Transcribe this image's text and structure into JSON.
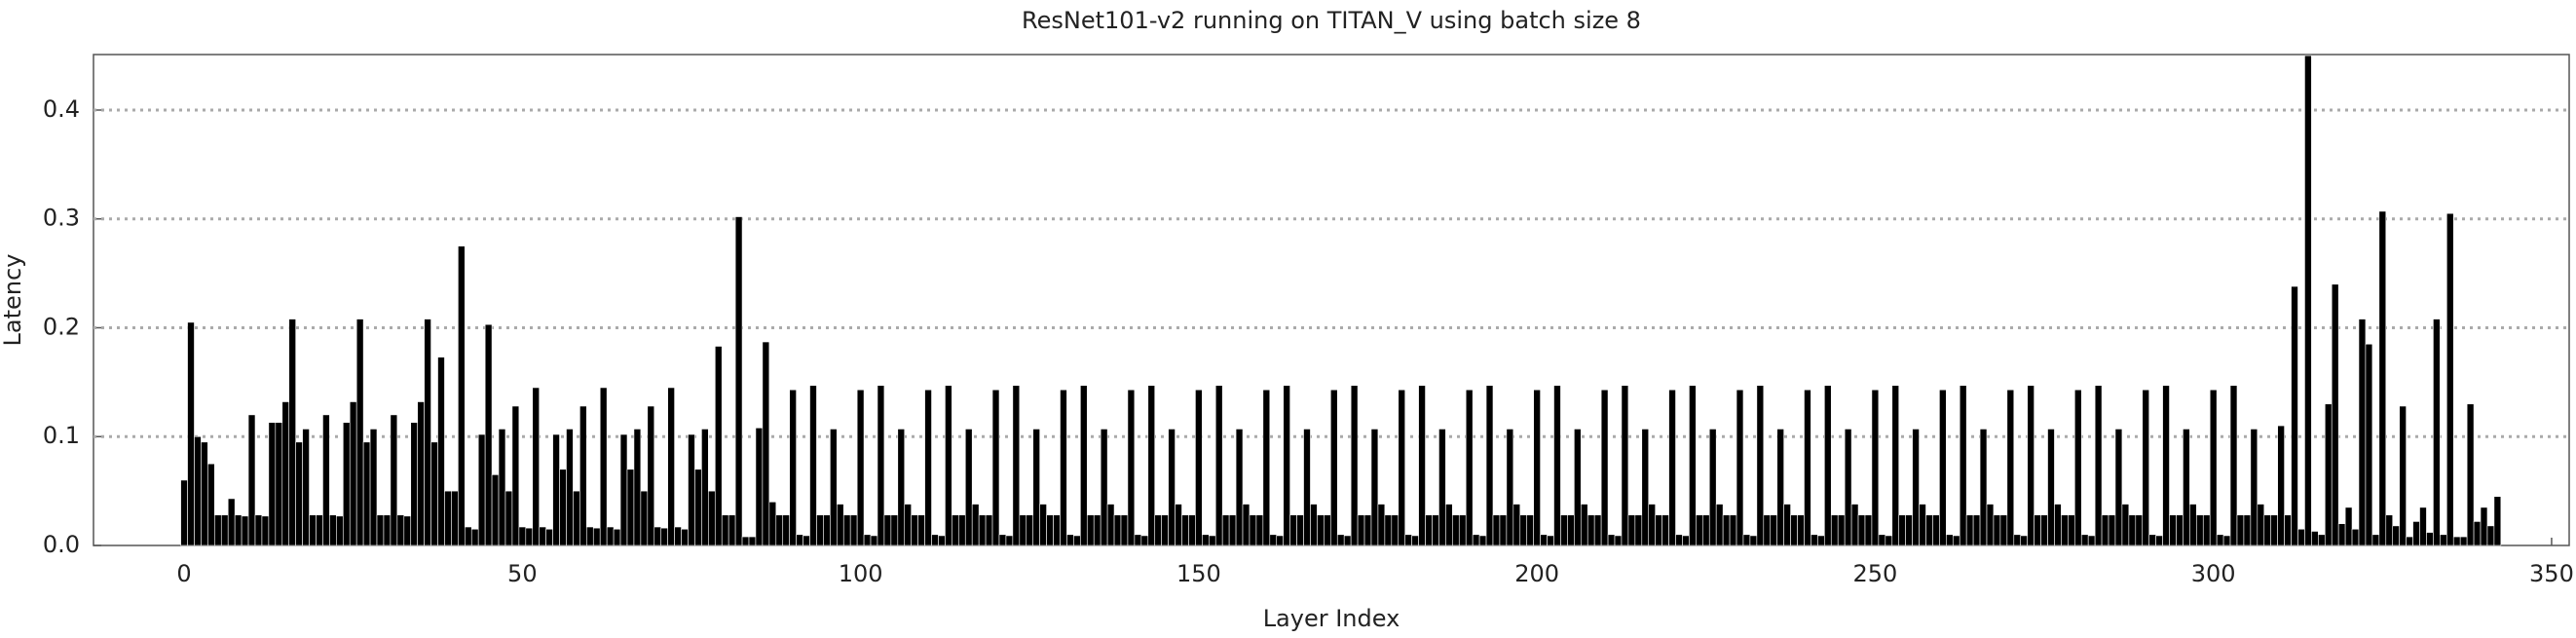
{
  "chart_data": {
    "type": "bar",
    "title": "ResNet101-v2 running on TITAN_V using batch size 8",
    "x_label": "Layer Index",
    "y_label": "Latency",
    "color": "#000000",
    "grid": true,
    "xlim": [
      -13.4,
      352.6
    ],
    "ylim": [
      0,
      0.451
    ],
    "xticks": [
      0,
      50,
      100,
      150,
      200,
      250,
      300,
      350
    ],
    "yticks": [
      {
        "value": 0,
        "label": "0.0"
      },
      0.1,
      0.2,
      0.3,
      0.4
    ],
    "x": [
      0,
      1,
      2,
      3,
      4,
      5,
      6,
      7,
      8,
      9,
      10,
      11,
      12,
      13,
      14,
      15,
      16,
      17,
      18,
      19,
      20,
      21,
      22,
      23,
      24,
      25,
      26,
      27,
      28,
      29,
      30,
      31,
      32,
      33,
      34,
      35,
      36,
      37,
      38,
      39,
      40,
      41,
      42,
      43,
      44,
      45,
      46,
      47,
      48,
      49,
      50,
      51,
      52,
      53,
      54,
      55,
      56,
      57,
      58,
      59,
      60,
      61,
      62,
      63,
      64,
      65,
      66,
      67,
      68,
      69,
      70,
      71,
      72,
      73,
      74,
      75,
      76,
      77,
      78,
      79,
      80,
      81,
      82,
      83,
      84,
      85,
      86,
      87,
      88,
      89,
      90,
      91,
      92,
      93,
      94,
      95,
      96,
      97,
      98,
      99,
      100,
      101,
      102,
      103,
      104,
      105,
      106,
      107,
      108,
      109,
      110,
      111,
      112,
      113,
      114,
      115,
      116,
      117,
      118,
      119,
      120,
      121,
      122,
      123,
      124,
      125,
      126,
      127,
      128,
      129,
      130,
      131,
      132,
      133,
      134,
      135,
      136,
      137,
      138,
      139,
      140,
      141,
      142,
      143,
      144,
      145,
      146,
      147,
      148,
      149,
      150,
      151,
      152,
      153,
      154,
      155,
      156,
      157,
      158,
      159,
      160,
      161,
      162,
      163,
      164,
      165,
      166,
      167,
      168,
      169,
      170,
      171,
      172,
      173,
      174,
      175,
      176,
      177,
      178,
      179,
      180,
      181,
      182,
      183,
      184,
      185,
      186,
      187,
      188,
      189,
      190,
      191,
      192,
      193,
      194,
      195,
      196,
      197,
      198,
      199,
      200,
      201,
      202,
      203,
      204,
      205,
      206,
      207,
      208,
      209,
      210,
      211,
      212,
      213,
      214,
      215,
      216,
      217,
      218,
      219,
      220,
      221,
      222,
      223,
      224,
      225,
      226,
      227,
      228,
      229,
      230,
      231,
      232,
      233,
      234,
      235,
      236,
      237,
      238,
      239,
      240,
      241,
      242,
      243,
      244,
      245,
      246,
      247,
      248,
      249,
      250,
      251,
      252,
      253,
      254,
      255,
      256,
      257,
      258,
      259,
      260,
      261,
      262,
      263,
      264,
      265,
      266,
      267,
      268,
      269,
      270,
      271,
      272,
      273,
      274,
      275,
      276,
      277,
      278,
      279,
      280,
      281,
      282,
      283,
      284,
      285,
      286,
      287,
      288,
      289,
      290,
      291,
      292,
      293,
      294,
      295,
      296,
      297,
      298,
      299,
      300,
      301,
      302,
      303,
      304,
      305,
      306,
      307,
      308,
      309,
      310,
      311,
      312,
      313,
      314,
      315,
      316,
      317,
      318,
      319,
      320,
      321,
      322,
      323,
      324,
      325,
      326,
      327,
      328,
      329,
      330,
      331,
      332,
      333,
      334,
      335,
      336,
      337,
      338,
      339,
      340,
      341,
      342
    ],
    "values": [
      0.06,
      0.205,
      0.1,
      0.095,
      0.075,
      0.028,
      0.028,
      0.043,
      0.028,
      0.027,
      0.12,
      0.028,
      0.027,
      0.113,
      0.113,
      0.132,
      0.208,
      0.095,
      0.107,
      0.028,
      0.028,
      0.12,
      0.028,
      0.027,
      0.113,
      0.132,
      0.208,
      0.095,
      0.107,
      0.028,
      0.028,
      0.12,
      0.028,
      0.027,
      0.113,
      0.132,
      0.208,
      0.095,
      0.173,
      0.05,
      0.05,
      0.275,
      0.017,
      0.015,
      0.102,
      0.203,
      0.065,
      0.107,
      0.05,
      0.128,
      0.017,
      0.016,
      0.145,
      0.017,
      0.015,
      0.102,
      0.07,
      0.107,
      0.05,
      0.128,
      0.017,
      0.016,
      0.145,
      0.017,
      0.015,
      0.102,
      0.07,
      0.107,
      0.05,
      0.128,
      0.017,
      0.016,
      0.145,
      0.017,
      0.015,
      0.102,
      0.07,
      0.107,
      0.05,
      0.183,
      0.028,
      0.028,
      0.302,
      0.008,
      0.008,
      0.108,
      0.187,
      0.04,
      0.028,
      0.028,
      0.143,
      0.01,
      0.009,
      0.147,
      0.028,
      0.028,
      0.107,
      0.038,
      0.028,
      0.028,
      0.143,
      0.01,
      0.009,
      0.147,
      0.028,
      0.028,
      0.107,
      0.038,
      0.028,
      0.028,
      0.143,
      0.01,
      0.009,
      0.147,
      0.028,
      0.028,
      0.107,
      0.038,
      0.028,
      0.028,
      0.143,
      0.01,
      0.009,
      0.147,
      0.028,
      0.028,
      0.107,
      0.038,
      0.028,
      0.028,
      0.143,
      0.01,
      0.009,
      0.147,
      0.028,
      0.028,
      0.107,
      0.038,
      0.028,
      0.028,
      0.143,
      0.01,
      0.009,
      0.147,
      0.028,
      0.028,
      0.107,
      0.038,
      0.028,
      0.028,
      0.143,
      0.01,
      0.009,
      0.147,
      0.028,
      0.028,
      0.107,
      0.038,
      0.028,
      0.028,
      0.143,
      0.01,
      0.009,
      0.147,
      0.028,
      0.028,
      0.107,
      0.038,
      0.028,
      0.028,
      0.143,
      0.01,
      0.009,
      0.147,
      0.028,
      0.028,
      0.107,
      0.038,
      0.028,
      0.028,
      0.143,
      0.01,
      0.009,
      0.147,
      0.028,
      0.028,
      0.107,
      0.038,
      0.028,
      0.028,
      0.143,
      0.01,
      0.009,
      0.147,
      0.028,
      0.028,
      0.107,
      0.038,
      0.028,
      0.028,
      0.143,
      0.01,
      0.009,
      0.147,
      0.028,
      0.028,
      0.107,
      0.038,
      0.028,
      0.028,
      0.143,
      0.01,
      0.009,
      0.147,
      0.028,
      0.028,
      0.107,
      0.038,
      0.028,
      0.028,
      0.143,
      0.01,
      0.009,
      0.147,
      0.028,
      0.028,
      0.107,
      0.038,
      0.028,
      0.028,
      0.143,
      0.01,
      0.009,
      0.147,
      0.028,
      0.028,
      0.107,
      0.038,
      0.028,
      0.028,
      0.143,
      0.01,
      0.009,
      0.147,
      0.028,
      0.028,
      0.107,
      0.038,
      0.028,
      0.028,
      0.143,
      0.01,
      0.009,
      0.147,
      0.028,
      0.028,
      0.107,
      0.038,
      0.028,
      0.028,
      0.143,
      0.01,
      0.009,
      0.147,
      0.028,
      0.028,
      0.107,
      0.038,
      0.028,
      0.028,
      0.143,
      0.01,
      0.009,
      0.147,
      0.028,
      0.028,
      0.107,
      0.038,
      0.028,
      0.028,
      0.143,
      0.01,
      0.009,
      0.147,
      0.028,
      0.028,
      0.107,
      0.038,
      0.028,
      0.028,
      0.143,
      0.01,
      0.009,
      0.147,
      0.028,
      0.028,
      0.107,
      0.038,
      0.028,
      0.028,
      0.143,
      0.01,
      0.009,
      0.147,
      0.028,
      0.028,
      0.107,
      0.038,
      0.028,
      0.028,
      0.11,
      0.028,
      0.238,
      0.015,
      0.45,
      0.013,
      0.01,
      0.13,
      0.24,
      0.02,
      0.035,
      0.015,
      0.208,
      0.185,
      0.01,
      0.307,
      0.028,
      0.018,
      0.128,
      0.008,
      0.022,
      0.035,
      0.012,
      0.208,
      0.01,
      0.305,
      0.008,
      0.008,
      0.13,
      0.022,
      0.035,
      0.018,
      0.045
    ]
  }
}
